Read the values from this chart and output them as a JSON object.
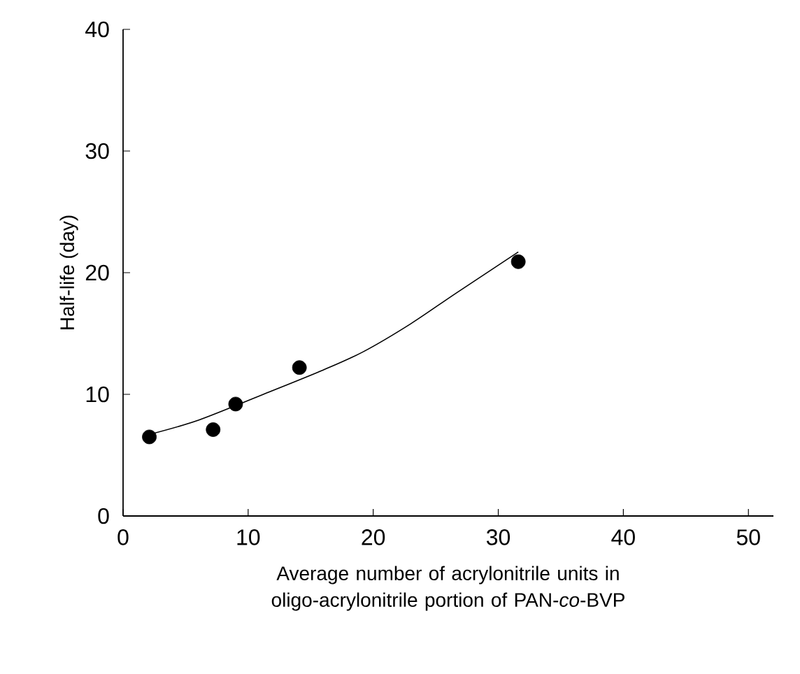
{
  "chart_data": {
    "type": "scatter",
    "xlabel": "Average number of acrylonitrile units in oligo-acrylonitrile portion of PAN-*co*-BVP",
    "ylabel": "Half-life (day)",
    "xlim": [
      0,
      52
    ],
    "ylim": [
      0,
      40
    ],
    "xticks": [
      0,
      10,
      20,
      30,
      40,
      50
    ],
    "yticks": [
      0,
      10,
      20,
      30,
      40
    ],
    "series": [
      {
        "marker": "circle",
        "color": "#000000",
        "x": [
          2.1,
          7.2,
          9.0,
          14.1,
          31.6
        ],
        "values": [
          6.5,
          7.1,
          9.2,
          12.2,
          20.9
        ]
      },
      {
        "type": "line",
        "marker": "none",
        "line_style": "solid",
        "color": "#000000",
        "x": [
          2.1,
          6.1,
          11.7,
          16.0,
          19.2,
          23.0,
          26.6,
          31.6
        ],
        "values": [
          6.7,
          7.9,
          10.2,
          12.0,
          13.5,
          15.8,
          18.3,
          21.7
        ]
      }
    ]
  }
}
